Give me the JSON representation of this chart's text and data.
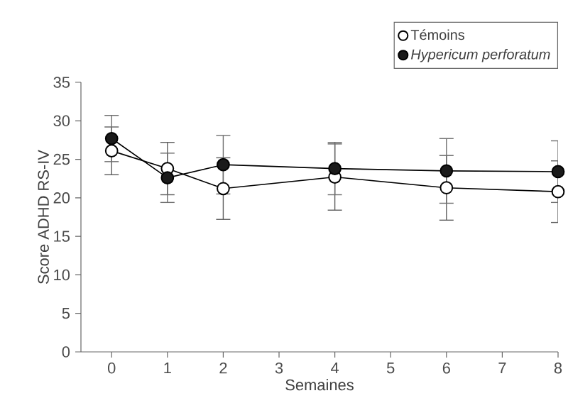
{
  "chart_data": {
    "type": "line",
    "xlabel": "Semaines",
    "ylabel": "Score ADHD RS-IV",
    "x": [
      0,
      1,
      2,
      4,
      6,
      8
    ],
    "series": [
      {
        "name": "Témoins",
        "color": "#ffffff",
        "values": [
          26.1,
          23.8,
          21.2,
          22.7,
          21.3,
          20.8
        ],
        "errors": [
          3.1,
          3.4,
          4.0,
          4.3,
          4.2,
          4.0
        ]
      },
      {
        "name": "*Hypericum perforatum*",
        "color": "#1a1a1a",
        "values": [
          27.7,
          22.6,
          24.3,
          23.8,
          23.5,
          23.4
        ],
        "errors": [
          3.0,
          3.2,
          3.8,
          3.4,
          4.2,
          4.0
        ]
      }
    ],
    "xlim": [
      -0.55,
      8
    ],
    "ylim": [
      0,
      35
    ],
    "xticks": [
      0,
      1,
      2,
      3,
      4,
      5,
      6,
      7,
      8
    ],
    "yticks": [
      0,
      5,
      10,
      15,
      20,
      25,
      30,
      35
    ],
    "marker": "circle",
    "line_style": "solid",
    "legend": "top right",
    "grid": false
  }
}
